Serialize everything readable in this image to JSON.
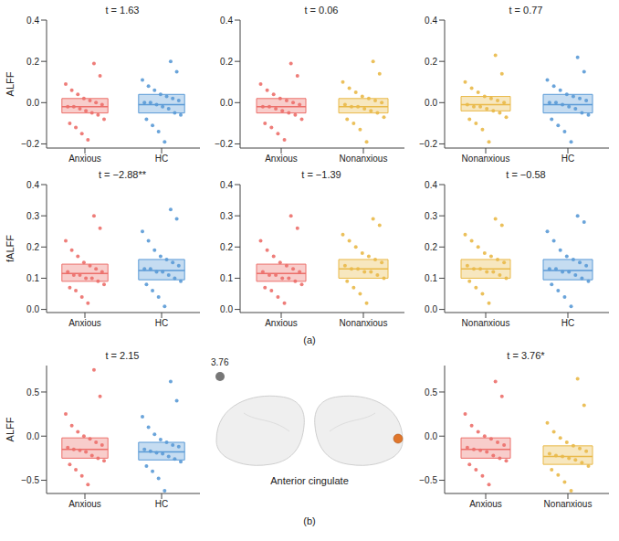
{
  "chart_data": [
    {
      "panel": "(a)",
      "type": "box",
      "title": "t = 1.63",
      "ylabel": "ALFF",
      "categories": [
        "Anxious",
        "HC"
      ],
      "colors": [
        "#ec6f6a",
        "#5a9ad6"
      ],
      "box": [
        {
          "q1": -0.05,
          "median": -0.02,
          "q3": 0.02
        },
        {
          "q1": -0.05,
          "median": -0.01,
          "q3": 0.04
        }
      ],
      "points": [
        [
          -0.18,
          -0.15,
          -0.12,
          -0.1,
          -0.08,
          -0.06,
          -0.05,
          -0.04,
          -0.03,
          -0.02,
          -0.02,
          -0.01,
          0.0,
          0.01,
          0.02,
          0.04,
          0.06,
          0.09,
          0.13,
          0.19
        ],
        [
          -0.19,
          -0.14,
          -0.11,
          -0.08,
          -0.06,
          -0.05,
          -0.03,
          -0.02,
          -0.01,
          0.0,
          0.0,
          0.01,
          0.02,
          0.03,
          0.04,
          0.06,
          0.08,
          0.11,
          0.15,
          0.2
        ]
      ],
      "ylim": [
        -0.22,
        0.4
      ],
      "yticks": [
        {
          "value": -0.2,
          "label": "−0.2"
        },
        {
          "value": 0,
          "label": "0.0"
        },
        {
          "value": 0.2,
          "label": "0.2"
        },
        {
          "value": 0.4,
          "label": "0.4"
        }
      ]
    },
    {
      "panel": "(a)",
      "type": "box",
      "title": "t = 0.06",
      "categories": [
        "Anxious",
        "Nonanxious"
      ],
      "colors": [
        "#ec6f6a",
        "#e9b949"
      ],
      "box": [
        {
          "q1": -0.05,
          "median": -0.02,
          "q3": 0.02
        },
        {
          "q1": -0.05,
          "median": -0.02,
          "q3": 0.02
        }
      ],
      "points": [
        [
          -0.18,
          -0.15,
          -0.12,
          -0.1,
          -0.08,
          -0.06,
          -0.05,
          -0.04,
          -0.03,
          -0.02,
          -0.02,
          -0.01,
          0.0,
          0.01,
          0.02,
          0.04,
          0.06,
          0.09,
          0.13,
          0.19
        ],
        [
          -0.19,
          -0.13,
          -0.1,
          -0.08,
          -0.07,
          -0.05,
          -0.04,
          -0.03,
          -0.02,
          -0.02,
          -0.01,
          0.0,
          0.01,
          0.02,
          0.03,
          0.05,
          0.07,
          0.1,
          0.14,
          0.2
        ]
      ],
      "ylim": [
        -0.22,
        0.4
      ],
      "yticks": [
        {
          "value": -0.2,
          "label": "−0.2"
        },
        {
          "value": 0,
          "label": "0.0"
        },
        {
          "value": 0.2,
          "label": "0.2"
        },
        {
          "value": 0.4,
          "label": "0.4"
        }
      ]
    },
    {
      "panel": "(a)",
      "type": "box",
      "title": "t = 0.77",
      "categories": [
        "Nonanxious",
        "HC"
      ],
      "colors": [
        "#e9b949",
        "#5a9ad6"
      ],
      "box": [
        {
          "q1": -0.04,
          "median": -0.01,
          "q3": 0.03
        },
        {
          "q1": -0.05,
          "median": -0.01,
          "q3": 0.04
        }
      ],
      "points": [
        [
          -0.19,
          -0.13,
          -0.1,
          -0.08,
          -0.07,
          -0.05,
          -0.04,
          -0.03,
          -0.02,
          -0.02,
          -0.01,
          0.0,
          0.01,
          0.02,
          0.03,
          0.05,
          0.07,
          0.1,
          0.14,
          0.23
        ],
        [
          -0.19,
          -0.14,
          -0.11,
          -0.08,
          -0.06,
          -0.05,
          -0.03,
          -0.02,
          -0.01,
          0.0,
          0.0,
          0.01,
          0.02,
          0.03,
          0.04,
          0.06,
          0.08,
          0.11,
          0.15,
          0.22
        ]
      ],
      "ylim": [
        -0.22,
        0.4
      ],
      "yticks": [
        {
          "value": -0.2,
          "label": "−0.2"
        },
        {
          "value": 0,
          "label": "0.0"
        },
        {
          "value": 0.2,
          "label": "0.2"
        },
        {
          "value": 0.4,
          "label": "0.4"
        }
      ]
    },
    {
      "panel": "(a)",
      "type": "box",
      "title": "t = −2.88**",
      "ylabel": "fALFF",
      "categories": [
        "Anxious",
        "HC"
      ],
      "colors": [
        "#ec6f6a",
        "#5a9ad6"
      ],
      "box": [
        {
          "q1": 0.09,
          "median": 0.115,
          "q3": 0.145
        },
        {
          "q1": 0.095,
          "median": 0.125,
          "q3": 0.16
        }
      ],
      "points": [
        [
          0.02,
          0.04,
          0.06,
          0.07,
          0.08,
          0.09,
          0.1,
          0.1,
          0.11,
          0.11,
          0.12,
          0.12,
          0.13,
          0.14,
          0.15,
          0.17,
          0.19,
          0.22,
          0.26,
          0.3
        ],
        [
          0.01,
          0.04,
          0.06,
          0.08,
          0.09,
          0.1,
          0.11,
          0.12,
          0.12,
          0.13,
          0.13,
          0.14,
          0.15,
          0.16,
          0.17,
          0.19,
          0.22,
          0.25,
          0.29,
          0.32
        ]
      ],
      "ylim": [
        -0.01,
        0.4
      ],
      "yticks": [
        {
          "value": 0,
          "label": "0.0"
        },
        {
          "value": 0.1,
          "label": "0.1"
        },
        {
          "value": 0.2,
          "label": "0.2"
        },
        {
          "value": 0.3,
          "label": "0.3"
        },
        {
          "value": 0.4,
          "label": "0.4"
        }
      ]
    },
    {
      "panel": "(a)",
      "type": "box",
      "title": "t = −1.39",
      "categories": [
        "Anxious",
        "Nonanxious"
      ],
      "colors": [
        "#ec6f6a",
        "#e9b949"
      ],
      "box": [
        {
          "q1": 0.09,
          "median": 0.115,
          "q3": 0.145
        },
        {
          "q1": 0.1,
          "median": 0.13,
          "q3": 0.16
        }
      ],
      "points": [
        [
          0.02,
          0.04,
          0.06,
          0.07,
          0.08,
          0.09,
          0.1,
          0.1,
          0.11,
          0.11,
          0.12,
          0.12,
          0.13,
          0.14,
          0.15,
          0.17,
          0.19,
          0.22,
          0.26,
          0.3
        ],
        [
          0.02,
          0.05,
          0.07,
          0.09,
          0.1,
          0.11,
          0.12,
          0.12,
          0.13,
          0.13,
          0.14,
          0.15,
          0.16,
          0.17,
          0.18,
          0.2,
          0.22,
          0.24,
          0.27,
          0.29
        ]
      ],
      "ylim": [
        -0.01,
        0.4
      ],
      "yticks": [
        {
          "value": 0,
          "label": "0.0"
        },
        {
          "value": 0.1,
          "label": "0.1"
        },
        {
          "value": 0.2,
          "label": "0.2"
        },
        {
          "value": 0.3,
          "label": "0.3"
        },
        {
          "value": 0.4,
          "label": "0.4"
        }
      ]
    },
    {
      "panel": "(a)",
      "type": "box",
      "title": "t = −0.58",
      "categories": [
        "Nonanxious",
        "HC"
      ],
      "colors": [
        "#e9b949",
        "#5a9ad6"
      ],
      "box": [
        {
          "q1": 0.1,
          "median": 0.13,
          "q3": 0.16
        },
        {
          "q1": 0.095,
          "median": 0.125,
          "q3": 0.16
        }
      ],
      "points": [
        [
          0.02,
          0.05,
          0.07,
          0.09,
          0.1,
          0.11,
          0.12,
          0.12,
          0.13,
          0.13,
          0.14,
          0.15,
          0.16,
          0.17,
          0.18,
          0.2,
          0.22,
          0.24,
          0.27,
          0.29
        ],
        [
          0.01,
          0.04,
          0.06,
          0.08,
          0.09,
          0.1,
          0.11,
          0.12,
          0.12,
          0.13,
          0.13,
          0.14,
          0.15,
          0.16,
          0.17,
          0.19,
          0.22,
          0.25,
          0.28,
          0.3
        ]
      ],
      "ylim": [
        -0.01,
        0.4
      ],
      "yticks": [
        {
          "value": 0,
          "label": "0.0"
        },
        {
          "value": 0.1,
          "label": "0.1"
        },
        {
          "value": 0.2,
          "label": "0.2"
        },
        {
          "value": 0.3,
          "label": "0.3"
        },
        {
          "value": 0.4,
          "label": "0.4"
        }
      ]
    },
    {
      "panel": "(b)",
      "type": "box",
      "title": "t = 2.15",
      "ylabel": "ALFF",
      "categories": [
        "Anxious",
        "HC"
      ],
      "colors": [
        "#ec6f6a",
        "#5a9ad6"
      ],
      "box": [
        {
          "q1": -0.25,
          "median": -0.15,
          "q3": -0.02
        },
        {
          "q1": -0.27,
          "median": -0.18,
          "q3": -0.07
        }
      ],
      "points": [
        [
          -0.55,
          -0.45,
          -0.38,
          -0.32,
          -0.28,
          -0.25,
          -0.22,
          -0.18,
          -0.16,
          -0.15,
          -0.13,
          -0.1,
          -0.07,
          -0.03,
          0.0,
          0.05,
          0.12,
          0.25,
          0.45,
          0.75
        ],
        [
          -0.62,
          -0.48,
          -0.4,
          -0.34,
          -0.29,
          -0.26,
          -0.23,
          -0.2,
          -0.19,
          -0.17,
          -0.15,
          -0.12,
          -0.1,
          -0.07,
          -0.04,
          0.02,
          0.1,
          0.22,
          0.4,
          0.62
        ]
      ],
      "ylim": [
        -0.65,
        0.8
      ],
      "yticks": [
        {
          "value": -0.5,
          "label": "−0.5"
        },
        {
          "value": 0,
          "label": "0.0"
        },
        {
          "value": 0.5,
          "label": "0.5"
        }
      ]
    },
    {
      "panel": "(b)",
      "type": "box",
      "title": "t = 3.76*",
      "categories": [
        "Anxious",
        "Nonanxious"
      ],
      "colors": [
        "#ec6f6a",
        "#e9b949"
      ],
      "box": [
        {
          "q1": -0.25,
          "median": -0.15,
          "q3": -0.02
        },
        {
          "q1": -0.32,
          "median": -0.23,
          "q3": -0.11
        }
      ],
      "points": [
        [
          -0.55,
          -0.45,
          -0.38,
          -0.32,
          -0.28,
          -0.25,
          -0.22,
          -0.18,
          -0.16,
          -0.15,
          -0.13,
          -0.1,
          -0.07,
          -0.03,
          0.0,
          0.05,
          0.12,
          0.25,
          0.45,
          0.62
        ],
        [
          -0.62,
          -0.52,
          -0.44,
          -0.38,
          -0.34,
          -0.3,
          -0.27,
          -0.25,
          -0.23,
          -0.22,
          -0.2,
          -0.17,
          -0.14,
          -0.11,
          -0.07,
          -0.02,
          0.05,
          0.15,
          0.35,
          0.65
        ]
      ],
      "ylim": [
        -0.65,
        0.8
      ],
      "yticks": [
        {
          "value": -0.5,
          "label": "−0.5"
        },
        {
          "value": 0,
          "label": "0.0"
        },
        {
          "value": 0.5,
          "label": "0.5"
        }
      ]
    }
  ],
  "annotations": {
    "brain": {
      "value": 3.76,
      "label": "Anterior cingulate"
    }
  }
}
